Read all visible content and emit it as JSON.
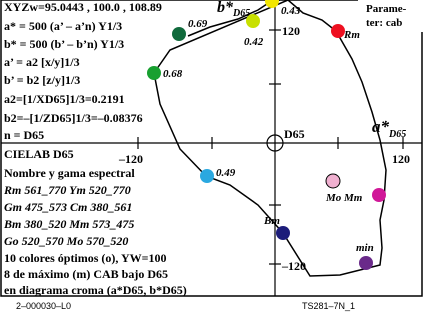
{
  "info": {
    "line1": "XYZw=95.0443 , 100.0 , 108.89",
    "line1_b": "b*",
    "line1_b_sub": "D65",
    "line2": "a* = 500 (a’ – a’n) Y1/3",
    "line3": "b* = 500 (b’ – b’n) Y1/3",
    "line4": "a’ = a2 [x/y]1/3",
    "line5": "b’ = b2 [z/y]1/3",
    "line6": "a2=[1/XD65]1/3=0.2191",
    "line7": "b2=–[1/ZD65]1/3=–0.08376",
    "line8": "n = D65",
    "line9": "CIELAB D65",
    "line10": "Nombre y gama espectral",
    "line11": "Rm 561_770   Ym 520_770",
    "line12": "Gm 475_573   Cm 380_561",
    "line13": "Bm 380_520   Mm 573_475",
    "line14": "Go 520_570   Mo 570_520",
    "line15": "10 colores óptimos (o), YW=100",
    "line16": "8 de máximo (m) CAB bajo D65",
    "line17": "en diagrama croma (a*D65, b*D65)"
  },
  "corner": {
    "line1": "Parame-",
    "line2": "ter: cab"
  },
  "axes": {
    "a_label": "a*",
    "a_sub": "D65",
    "center_label": "D65",
    "tick_left": "–120",
    "tick_right": "120",
    "tick_top": "120",
    "tick_bottom": "–120"
  },
  "point_labels": {
    "p043": "0.43",
    "p069": "0.69",
    "p042": "0.42",
    "p068": "0.68",
    "p049": "0.49",
    "rm": "Rm",
    "mo_mm": "Mo Mm",
    "bm": "Bm",
    "min": "min"
  },
  "footer": {
    "left": "2–000030–L0",
    "right": "TS281–7N_1"
  },
  "colors": {
    "yellow": "#f2e600",
    "yellowgreen": "#c8e000",
    "darkgreen": "#106a3c",
    "green": "#18a030",
    "red": "#ee1020",
    "cyan": "#2aa8e0",
    "pink": "#f0b0d0",
    "magenta": "#d01898",
    "blue": "#1c1c7a",
    "violet": "#6a2a8a"
  }
}
